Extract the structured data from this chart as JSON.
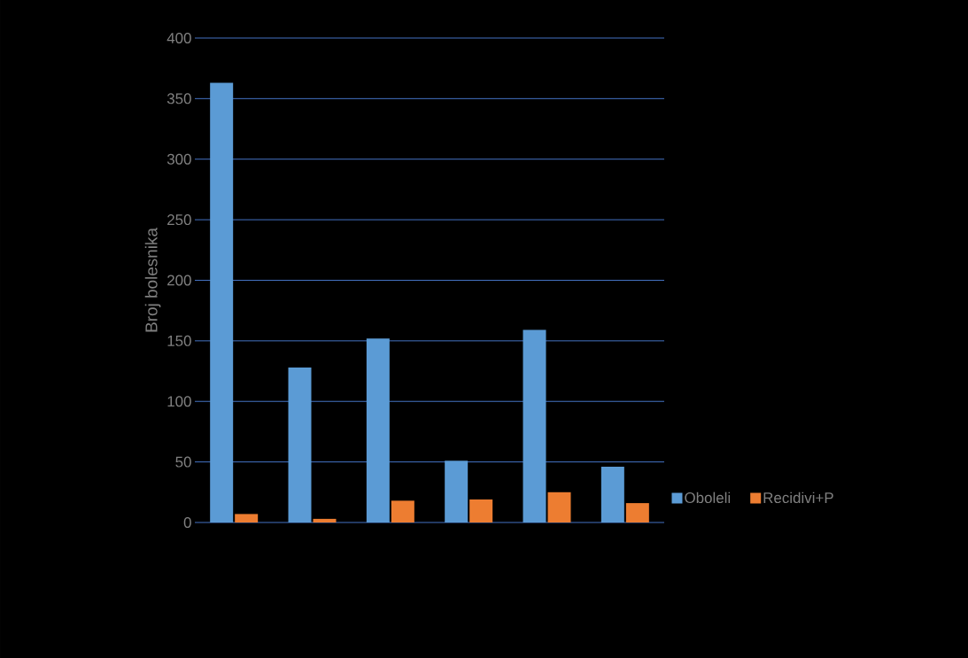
{
  "chart_data": {
    "type": "bar",
    "ylabel": "Broj bolesnika",
    "categories": [
      null,
      null,
      null,
      null,
      null,
      null
    ],
    "series": [
      {
        "name": "Oboleli",
        "color": "#5b9bd5",
        "values": [
          363,
          128,
          152,
          51,
          159,
          46
        ]
      },
      {
        "name": "Recidivi+P",
        "color": "#ed7d31",
        "values": [
          7,
          3,
          18,
          19,
          25,
          16
        ]
      }
    ],
    "ylim": [
      0,
      400
    ],
    "yticks": [
      0,
      50,
      100,
      150,
      200,
      250,
      300,
      350,
      400
    ],
    "grid": "y",
    "legend": "right"
  }
}
